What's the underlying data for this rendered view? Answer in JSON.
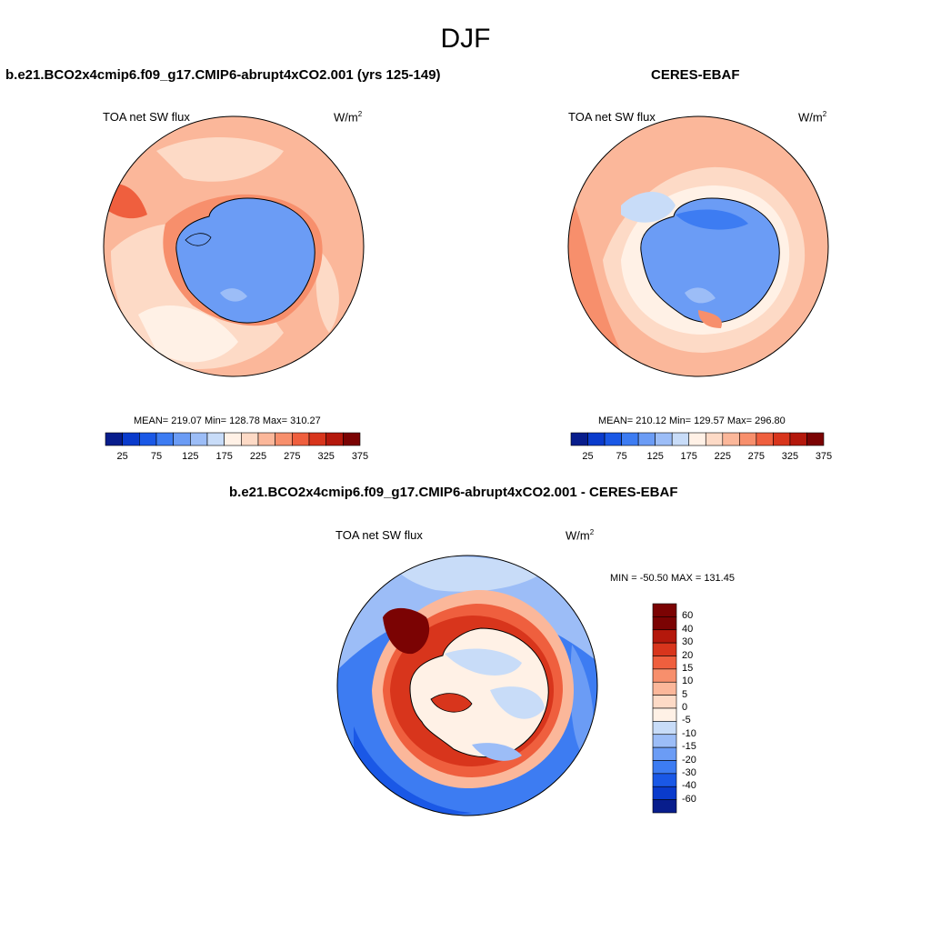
{
  "figure": {
    "title": "DJF"
  },
  "panels": [
    {
      "title": "b.e21.BCO2x4cmip6.f09_g17.CMIP6-abrupt4xCO2.001 (yrs 125-149)",
      "left_label": "TOA net SW flux",
      "units_base": "W/m",
      "units_exp": "2",
      "stats": "MEAN= 219.07  Min= 128.78  Max= 310.27",
      "colorbar_labels": [
        "25",
        "75",
        "125",
        "175",
        "225",
        "275",
        "325",
        "375"
      ]
    },
    {
      "title": "CERES-EBAF",
      "left_label": "TOA net SW flux",
      "units_base": "W/m",
      "units_exp": "2",
      "stats": "MEAN= 210.12  Min= 129.57  Max= 296.80",
      "colorbar_labels": [
        "25",
        "75",
        "125",
        "175",
        "225",
        "275",
        "325",
        "375"
      ]
    },
    {
      "title": "b.e21.BCO2x4cmip6.f09_g17.CMIP6-abrupt4xCO2.001 - CERES-EBAF",
      "left_label": "TOA net SW flux",
      "units_base": "W/m",
      "units_exp": "2",
      "stats": "MIN = -50.50 MAX = 131.45",
      "colorbar_labels": [
        "60",
        "40",
        "30",
        "20",
        "15",
        "10",
        "5",
        "0",
        "-5",
        "-10",
        "-15",
        "-20",
        "-30",
        "-40",
        "-60"
      ]
    }
  ],
  "colors": {
    "seq": [
      "#081d8c",
      "#0a3bcc",
      "#1a58e6",
      "#3d7cf2",
      "#6b9cf5",
      "#9cbdf7",
      "#c8dcf8",
      "#fff1e6",
      "#fddac6",
      "#fbb79a",
      "#f78f6c",
      "#ef5f3e",
      "#d8351c",
      "#b4180c",
      "#7b0303"
    ],
    "div": [
      "#7b0303",
      "#b4180c",
      "#d8351c",
      "#ef5f3e",
      "#f78f6c",
      "#fbb79a",
      "#fddac6",
      "#fff1e6",
      "#c8dcf8",
      "#9cbdf7",
      "#6b9cf5",
      "#3d7cf2",
      "#1a58e6",
      "#0a3bcc",
      "#081d8c"
    ]
  }
}
